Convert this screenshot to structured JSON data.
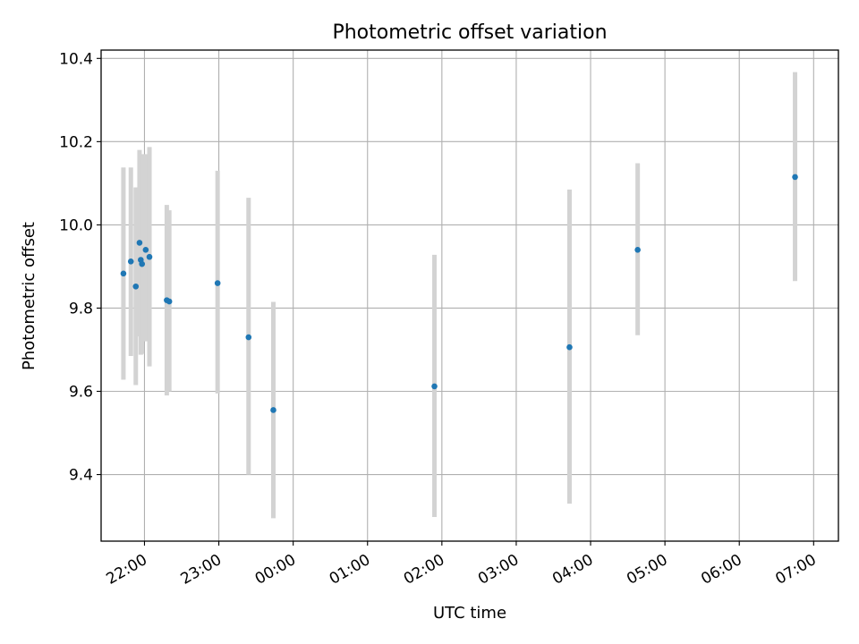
{
  "chart_data": {
    "type": "scatter",
    "title": "Photometric offset variation",
    "xlabel": "UTC time",
    "ylabel": "Photometric offset",
    "x_unit": "hours",
    "grid": true,
    "xlim": [
      "21:25",
      "07:20"
    ],
    "ylim": [
      9.24,
      10.42
    ],
    "xticks": [
      "22:00",
      "23:00",
      "00:00",
      "01:00",
      "02:00",
      "03:00",
      "04:00",
      "05:00",
      "06:00",
      "07:00"
    ],
    "yticks": [
      "9.4",
      "9.6",
      "9.8",
      "10.0",
      "10.2",
      "10.4"
    ],
    "marker_color": "#1f77b4",
    "errorbar_color": "#d3d3d3",
    "points": [
      {
        "x": "21:43",
        "y": 9.883,
        "yerr_low": 9.628,
        "yerr_high": 10.138
      },
      {
        "x": "21:49",
        "y": 9.912,
        "yerr_low": 9.685,
        "yerr_high": 10.138
      },
      {
        "x": "21:53",
        "y": 9.852,
        "yerr_low": 9.615,
        "yerr_high": 10.09
      },
      {
        "x": "21:56",
        "y": 9.957,
        "yerr_low": 9.732,
        "yerr_high": 10.18
      },
      {
        "x": "21:57",
        "y": 9.916,
        "yerr_low": 9.688,
        "yerr_high": 10.14
      },
      {
        "x": "21:58",
        "y": 9.906,
        "yerr_low": 9.69,
        "yerr_high": 10.17
      },
      {
        "x": "22:01",
        "y": 9.94,
        "yerr_low": 9.72,
        "yerr_high": 10.17
      },
      {
        "x": "22:04",
        "y": 9.923,
        "yerr_low": 9.66,
        "yerr_high": 10.187
      },
      {
        "x": "22:18",
        "y": 9.819,
        "yerr_low": 9.59,
        "yerr_high": 10.048
      },
      {
        "x": "22:20",
        "y": 9.816,
        "yerr_low": 9.6,
        "yerr_high": 10.035
      },
      {
        "x": "22:59",
        "y": 9.86,
        "yerr_low": 9.595,
        "yerr_high": 10.13
      },
      {
        "x": "23:24",
        "y": 9.73,
        "yerr_low": 9.4,
        "yerr_high": 10.065
      },
      {
        "x": "23:44",
        "y": 9.555,
        "yerr_low": 9.295,
        "yerr_high": 9.815
      },
      {
        "x": "01:54",
        "y": 9.612,
        "yerr_low": 9.298,
        "yerr_high": 9.928
      },
      {
        "x": "03:43",
        "y": 9.706,
        "yerr_low": 9.33,
        "yerr_high": 10.085
      },
      {
        "x": "04:38",
        "y": 9.94,
        "yerr_low": 9.735,
        "yerr_high": 10.148
      },
      {
        "x": "06:45",
        "y": 10.115,
        "yerr_low": 9.865,
        "yerr_high": 10.367
      }
    ]
  }
}
